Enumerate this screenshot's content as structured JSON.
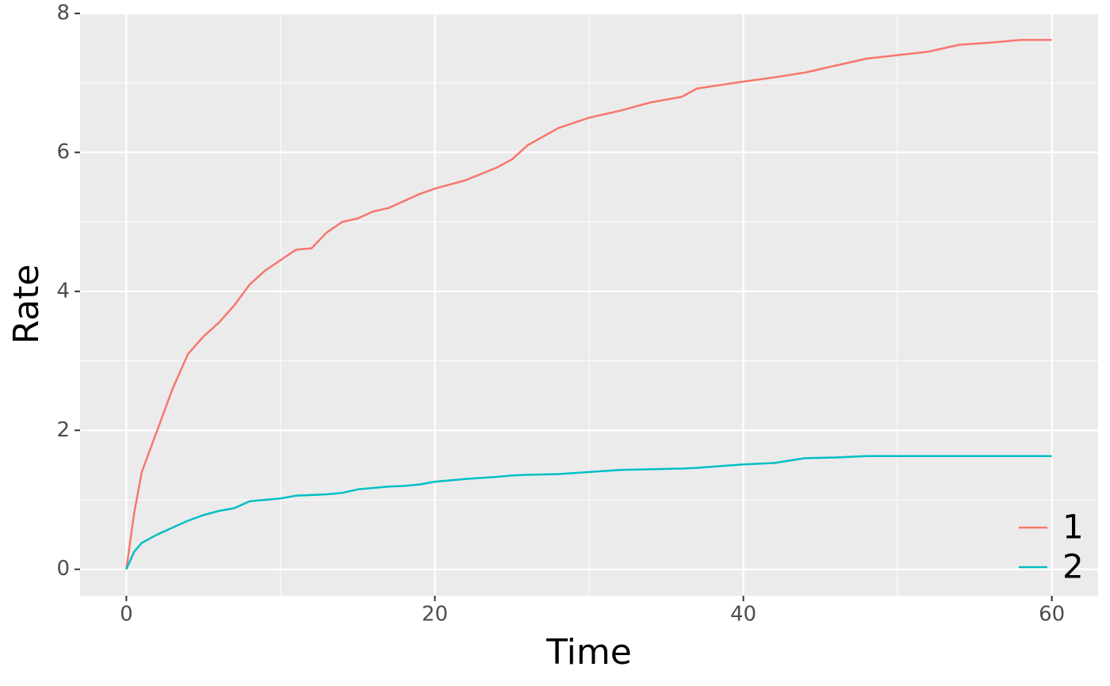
{
  "chart_data": {
    "type": "line",
    "x_label": "Time",
    "y_label": "Rate",
    "x": [
      0,
      0.5,
      1,
      2,
      3,
      4,
      5,
      6,
      7,
      8,
      9,
      10,
      11,
      12,
      13,
      14,
      15,
      16,
      17,
      18,
      19,
      20,
      22,
      24,
      25,
      26,
      28,
      30,
      32,
      34,
      36,
      37,
      40,
      42,
      44,
      46,
      48,
      50,
      52,
      54,
      56,
      58,
      60
    ],
    "series": [
      {
        "name": "1",
        "color": "#F8766D",
        "values": [
          0,
          0.8,
          1.4,
          2.0,
          2.6,
          3.1,
          3.35,
          3.55,
          3.8,
          4.1,
          4.3,
          4.45,
          4.6,
          4.62,
          4.85,
          5.0,
          5.05,
          5.15,
          5.2,
          5.3,
          5.4,
          5.48,
          5.6,
          5.78,
          5.9,
          6.1,
          6.35,
          6.5,
          6.6,
          6.72,
          6.8,
          6.92,
          7.02,
          7.08,
          7.15,
          7.25,
          7.35,
          7.4,
          7.45,
          7.55,
          7.58,
          7.62,
          7.62
        ]
      },
      {
        "name": "2",
        "color": "#00BFC4",
        "values": [
          0,
          0.25,
          0.38,
          0.5,
          0.6,
          0.7,
          0.78,
          0.84,
          0.88,
          0.98,
          1.0,
          1.02,
          1.06,
          1.07,
          1.08,
          1.1,
          1.15,
          1.17,
          1.19,
          1.2,
          1.22,
          1.26,
          1.3,
          1.33,
          1.35,
          1.36,
          1.37,
          1.4,
          1.43,
          1.44,
          1.45,
          1.46,
          1.51,
          1.53,
          1.6,
          1.61,
          1.63,
          1.63,
          1.63,
          1.63,
          1.63,
          1.63,
          1.63
        ]
      }
    ],
    "xlim": [
      -3,
      63
    ],
    "ylim": [
      -0.38,
      8.0
    ],
    "xticks": [
      0,
      20,
      40,
      60
    ],
    "yticks": [
      0,
      2,
      4,
      6,
      8
    ],
    "x_minor_grid": [
      10,
      30,
      50
    ],
    "y_minor_grid": [
      1,
      3,
      5,
      7
    ],
    "grid": true,
    "legend_position": "bottom-right"
  }
}
